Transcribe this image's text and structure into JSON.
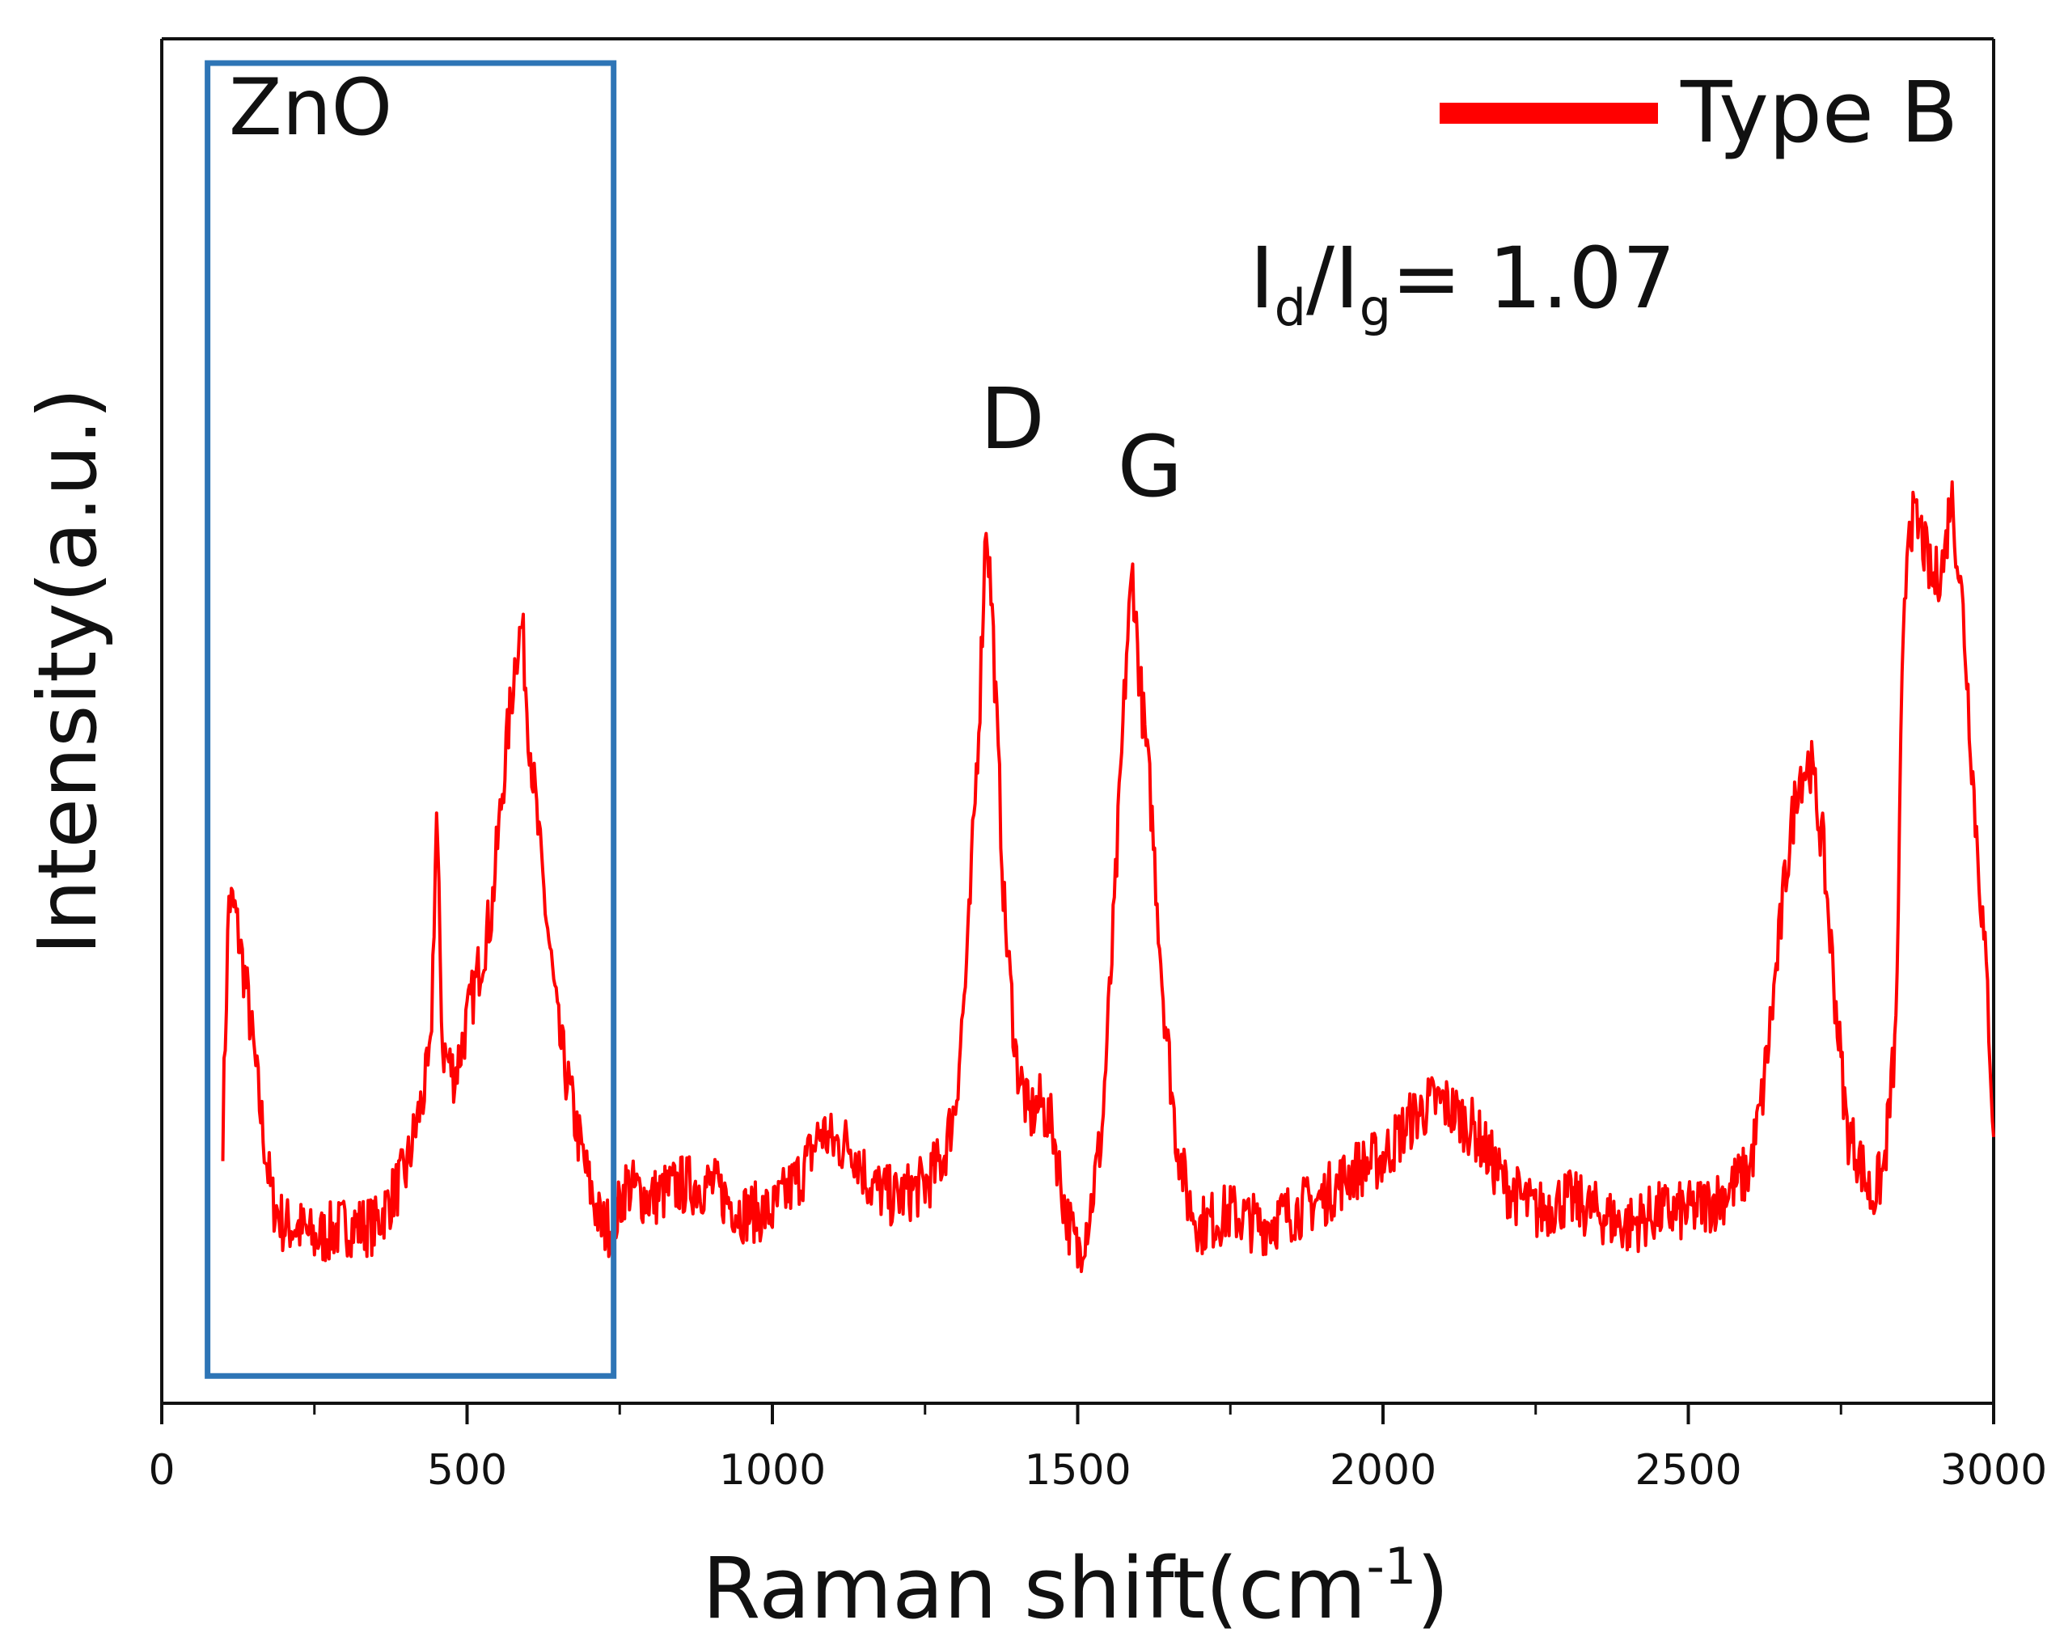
{
  "chart_data": {
    "type": "line",
    "title": "",
    "xlabel": "Raman shift(cm",
    "xlabel_sup": "-1",
    "xlabel_close": ")",
    "ylabel": "Intensity(a.u.)",
    "xlim": [
      0,
      3000
    ],
    "ylim": [
      0,
      1
    ],
    "x_ticks": [
      0,
      500,
      1000,
      1500,
      2000,
      2500,
      3000
    ],
    "x_tick_labels": [
      "0",
      "500",
      "1000",
      "1500",
      "2000",
      "2500",
      "3000"
    ],
    "x_minor_ticks": [
      250,
      750,
      1250,
      1750,
      2250,
      2750
    ],
    "y_ticks": [],
    "grid": false,
    "legend": {
      "position": "top-right",
      "entries": [
        {
          "name": "Type B",
          "color": "#ff0000"
        }
      ]
    },
    "series": [
      {
        "name": "Type B",
        "color": "#ff0000",
        "x": [
          100,
          110,
          120,
          140,
          160,
          180,
          200,
          220,
          250,
          300,
          350,
          400,
          420,
          440,
          450,
          460,
          480,
          500,
          520,
          540,
          560,
          580,
          590,
          600,
          620,
          650,
          680,
          700,
          720,
          740,
          760,
          800,
          850,
          900,
          950,
          1000,
          1050,
          1080,
          1100,
          1130,
          1160,
          1200,
          1250,
          1280,
          1300,
          1320,
          1340,
          1350,
          1360,
          1380,
          1400,
          1420,
          1440,
          1460,
          1480,
          1500,
          1520,
          1540,
          1560,
          1580,
          1590,
          1600,
          1620,
          1640,
          1660,
          1680,
          1700,
          1750,
          1800,
          1850,
          1900,
          1950,
          2000,
          2050,
          2080,
          2100,
          2150,
          2200,
          2250,
          2300,
          2350,
          2400,
          2450,
          2500,
          2550,
          2600,
          2620,
          2640,
          2660,
          2680,
          2700,
          2720,
          2740,
          2760,
          2780,
          2800,
          2820,
          2840,
          2850,
          2860,
          2880,
          2900,
          2920,
          2930,
          2950,
          2970,
          2990,
          3000
        ],
        "values": [
          0.2,
          0.37,
          0.36,
          0.3,
          0.22,
          0.15,
          0.13,
          0.13,
          0.12,
          0.13,
          0.13,
          0.17,
          0.21,
          0.25,
          0.43,
          0.26,
          0.24,
          0.28,
          0.32,
          0.36,
          0.46,
          0.55,
          0.57,
          0.5,
          0.4,
          0.27,
          0.2,
          0.16,
          0.13,
          0.13,
          0.16,
          0.15,
          0.16,
          0.16,
          0.14,
          0.14,
          0.17,
          0.2,
          0.19,
          0.19,
          0.16,
          0.15,
          0.16,
          0.18,
          0.22,
          0.33,
          0.52,
          0.65,
          0.58,
          0.36,
          0.25,
          0.21,
          0.22,
          0.2,
          0.14,
          0.11,
          0.14,
          0.2,
          0.36,
          0.55,
          0.61,
          0.54,
          0.44,
          0.3,
          0.2,
          0.15,
          0.13,
          0.14,
          0.13,
          0.14,
          0.15,
          0.17,
          0.18,
          0.21,
          0.22,
          0.22,
          0.2,
          0.16,
          0.14,
          0.15,
          0.14,
          0.13,
          0.14,
          0.14,
          0.15,
          0.17,
          0.22,
          0.3,
          0.39,
          0.46,
          0.47,
          0.41,
          0.3,
          0.2,
          0.18,
          0.15,
          0.17,
          0.27,
          0.52,
          0.65,
          0.64,
          0.6,
          0.62,
          0.67,
          0.58,
          0.43,
          0.3,
          0.2
        ]
      }
    ],
    "annotations": [
      {
        "text": "ZnO",
        "x": 110,
        "y": 0.93
      },
      {
        "text": "D",
        "x": 1340,
        "y": 0.7
      },
      {
        "text": "G",
        "x": 1565,
        "y": 0.665
      }
    ],
    "ratio_label": {
      "i": "I",
      "d": "d",
      "slash": "/",
      "g": "g",
      "rest": "= 1.07"
    },
    "highlight_box": {
      "label": "ZnO",
      "x_range": [
        75,
        740
      ],
      "y_range": [
        0.02,
        1.0
      ],
      "color": "#2e75b6"
    }
  }
}
